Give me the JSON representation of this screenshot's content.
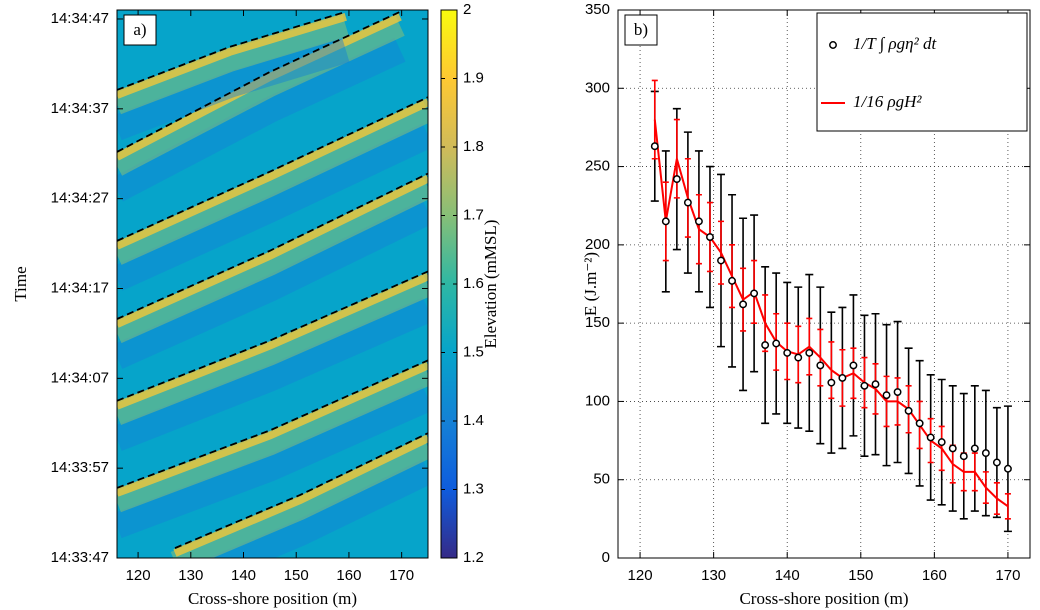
{
  "chart_data": [
    {
      "type": "heatmap",
      "panel_label": "a)",
      "xlabel": "Cross-shore position (m)",
      "ylabel": "Time",
      "xlim": [
        116,
        175
      ],
      "xticks": [
        120,
        130,
        140,
        150,
        160,
        170
      ],
      "ylim": [
        52427,
        52488
      ],
      "yticks": [
        {
          "value": 52427,
          "label": "14:33:47"
        },
        {
          "value": 52437,
          "label": "14:33:57"
        },
        {
          "value": 52447,
          "label": "14:34:07"
        },
        {
          "value": 52457,
          "label": "14:34:17"
        },
        {
          "value": 52467,
          "label": "14:34:27"
        },
        {
          "value": 52477,
          "label": "14:34:37"
        },
        {
          "value": 52487,
          "label": "14:34:47"
        }
      ],
      "crests": {
        "color": "#000000",
        "lines": [
          {
            "x": [
              127.0,
              150.7,
              175.0
            ],
            "values": [
              52428.1,
              52434.0,
              52440.9
            ]
          },
          {
            "x": [
              116,
              145,
              175
            ],
            "values": [
              52434.8,
              52441.2,
              52449.0
            ]
          },
          {
            "x": [
              116,
              145,
              175
            ],
            "values": [
              52444.5,
              52451.2,
              52458.9
            ]
          },
          {
            "x": [
              116,
              145,
              175
            ],
            "values": [
              52453.6,
              52461.2,
              52469.8
            ]
          },
          {
            "x": [
              116,
              145,
              175
            ],
            "values": [
              52462.3,
              52470.0,
              52478.3
            ]
          },
          {
            "x": [
              116,
              145,
              169.7
            ],
            "values": [
              52472.2,
              52481.1,
              52487.8
            ]
          },
          {
            "x": [
              116,
              137.4,
              159.4
            ],
            "values": [
              52479.1,
              52483.9,
              52487.8
            ]
          }
        ]
      },
      "colorbar": {
        "label": "Elevation (mMSL)",
        "lim": [
          1.2,
          2
        ],
        "ticks": [
          1.2,
          1.3,
          1.4,
          1.5,
          1.6,
          1.7,
          1.8,
          1.9,
          2
        ],
        "colormap": [
          "#352a87",
          "#0f5cdd",
          "#1481d6",
          "#06a4ca",
          "#2eb7a4",
          "#87bf77",
          "#d1bb59",
          "#fec832",
          "#f9fb0e"
        ]
      }
    },
    {
      "type": "errorbar",
      "panel_label": "b)",
      "xlabel": "Cross-shore position (m)",
      "ylabel": "E (J.m⁻²)",
      "xlim": [
        117,
        173
      ],
      "xticks": [
        120,
        130,
        140,
        150,
        160,
        170
      ],
      "ylim": [
        0,
        350
      ],
      "yticks": [
        0,
        50,
        100,
        150,
        200,
        250,
        300,
        350
      ],
      "grid": true,
      "legend": "upper right",
      "series": [
        {
          "name": "1/T ∫ ρgη² dt",
          "color": "#000000",
          "marker": "circle",
          "x": [
            122,
            123.5,
            125,
            126.5,
            128,
            129.5,
            131,
            132.5,
            134,
            135.5,
            137,
            138.5,
            140,
            141.5,
            143,
            144.5,
            146,
            147.5,
            149,
            150.5,
            152,
            153.5,
            155,
            156.5,
            158,
            159.5,
            161,
            162.5,
            164,
            165.5,
            167,
            168.5,
            170
          ],
          "values": [
            263,
            215,
            242,
            227,
            215,
            205,
            190,
            177,
            162,
            169,
            136,
            137,
            131,
            128,
            131,
            123,
            112,
            115,
            123,
            110,
            111,
            104,
            106,
            94,
            86,
            77,
            74,
            70,
            65,
            70,
            67,
            61,
            57
          ],
          "errors": [
            35,
            45,
            45,
            45,
            45,
            45,
            55,
            55,
            55,
            50,
            50,
            45,
            45,
            45,
            50,
            50,
            45,
            45,
            45,
            45,
            45,
            45,
            45,
            40,
            40,
            40,
            40,
            40,
            40,
            40,
            40,
            35,
            40
          ]
        },
        {
          "name": "1/16 ρgH²",
          "color": "#ff0000",
          "marker": "line",
          "x": [
            122,
            123.5,
            125,
            126.5,
            128,
            129.5,
            131,
            132.5,
            134,
            135.5,
            137,
            138.5,
            140,
            141.5,
            143,
            144.5,
            146,
            147.5,
            149,
            150.5,
            152,
            153.5,
            155,
            156.5,
            158,
            159.5,
            161,
            162.5,
            164,
            165.5,
            167,
            168.5,
            170
          ],
          "values": [
            280,
            215,
            255,
            230,
            210,
            205,
            195,
            180,
            165,
            170,
            150,
            138,
            132,
            130,
            135,
            128,
            120,
            115,
            118,
            112,
            108,
            100,
            100,
            95,
            85,
            75,
            70,
            60,
            55,
            55,
            45,
            38,
            33
          ],
          "errors": [
            25,
            25,
            25,
            25,
            22,
            22,
            20,
            20,
            20,
            20,
            18,
            18,
            18,
            18,
            18,
            18,
            18,
            18,
            16,
            16,
            16,
            16,
            15,
            15,
            15,
            14,
            14,
            12,
            12,
            12,
            10,
            10,
            8
          ]
        }
      ]
    }
  ]
}
